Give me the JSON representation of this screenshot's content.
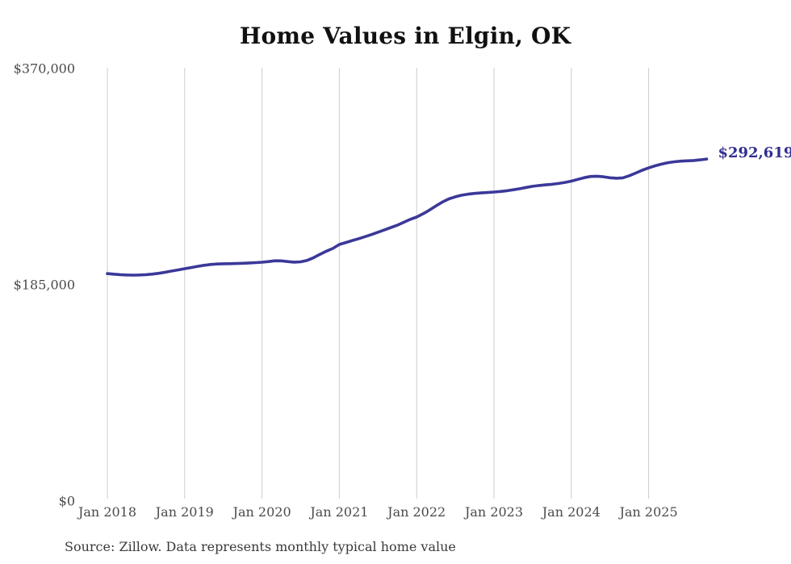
{
  "colors": {
    "line": "#3b3899",
    "end_label": "#322f90",
    "gridline": "#cccccc",
    "title": "#111111",
    "tick_label": "#4a4a4a",
    "source": "#3a3a3a",
    "background": "#ffffff"
  },
  "chart_data": {
    "type": "line",
    "title": "Home Values in Elgin, OK",
    "source_note": "Source: Zillow. Data represents monthly typical home value",
    "xlabel": "",
    "ylabel": "",
    "ylim": [
      0,
      370000
    ],
    "grid": "vertical-only",
    "legend": "none",
    "x_start": "Jan 2018",
    "x_step": "1 month",
    "x_end": "Oct 2025",
    "end_label": "$292,619",
    "end_value": 292619,
    "y_ticks": [
      {
        "value": 0,
        "label": "$0"
      },
      {
        "value": 185000,
        "label": "$185,000"
      },
      {
        "value": 370000,
        "label": "$370,000"
      }
    ],
    "x_ticks": [
      {
        "label": "Jan 2018"
      },
      {
        "label": "Jan 2019"
      },
      {
        "label": "Jan 2020"
      },
      {
        "label": "Jan 2021"
      },
      {
        "label": "Jan 2022"
      },
      {
        "label": "Jan 2023"
      },
      {
        "label": "Jan 2024"
      },
      {
        "label": "Jan 2025"
      }
    ],
    "series": [
      {
        "name": "Monthly typical home value",
        "color": "#3b3899",
        "values": [
          194600,
          194100,
          193700,
          193400,
          193300,
          193400,
          193700,
          194200,
          194900,
          195800,
          196800,
          197800,
          198800,
          199800,
          200800,
          201700,
          202400,
          202800,
          203000,
          203100,
          203200,
          203400,
          203700,
          204000,
          204300,
          204900,
          205600,
          205500,
          204900,
          204400,
          204700,
          205900,
          208200,
          211100,
          213800,
          216100,
          219500,
          221200,
          222900,
          224500,
          226200,
          228000,
          230000,
          232000,
          234000,
          236000,
          238500,
          241000,
          243000,
          245800,
          249000,
          252500,
          255800,
          258500,
          260300,
          261700,
          262600,
          263200,
          263600,
          264000,
          264400,
          264900,
          265500,
          266300,
          267200,
          268300,
          269300,
          270000,
          270500,
          271000,
          271700,
          272600,
          273700,
          275200,
          276700,
          277700,
          277900,
          277400,
          276600,
          276200,
          276500,
          278300,
          280600,
          283000,
          285000,
          286800,
          288300,
          289500,
          290300,
          290800,
          291100,
          291400,
          291900,
          292619
        ]
      }
    ]
  }
}
